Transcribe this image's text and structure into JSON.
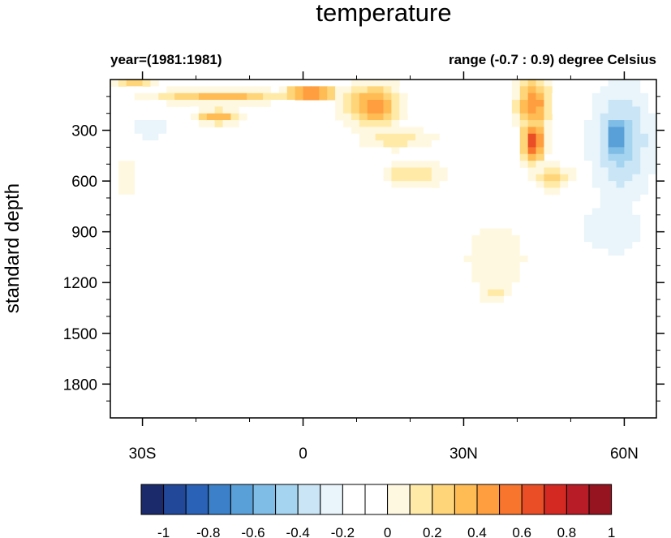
{
  "chart_data": {
    "type": "heatmap",
    "title": "temperature",
    "subtitle_left": "year=(1981:1981)",
    "subtitle_right": "range (-0.7 : 0.9) degree Celsius",
    "ylabel": "standard depth",
    "xlabel": "",
    "x_range": [
      -36,
      66
    ],
    "y_range": [
      0,
      2000
    ],
    "y_reversed": true,
    "x_ticks": [
      {
        "value": -30,
        "label": "30S"
      },
      {
        "value": 0,
        "label": "0"
      },
      {
        "value": 30,
        "label": "30N"
      },
      {
        "value": 60,
        "label": "60N"
      }
    ],
    "y_ticks": [
      {
        "value": 300,
        "label": "300"
      },
      {
        "value": 600,
        "label": "600"
      },
      {
        "value": 900,
        "label": "900"
      },
      {
        "value": 1200,
        "label": "1200"
      },
      {
        "value": 1500,
        "label": "1500"
      },
      {
        "value": 1800,
        "label": "1800"
      }
    ],
    "colorbar": {
      "colors": [
        "#1b2a6b",
        "#22489a",
        "#2a62b8",
        "#3b80c8",
        "#5aa0d8",
        "#7fbde6",
        "#a5d4f0",
        "#cae6f6",
        "#e9f5fb",
        "#ffffff",
        "#ffffff",
        "#fff8e1",
        "#ffeaa8",
        "#ffd57a",
        "#ffbc55",
        "#ff9e3e",
        "#f8752e",
        "#e94e26",
        "#d42923",
        "#b81c26",
        "#951420"
      ],
      "tick_labels": [
        {
          "index": 1,
          "label": "-1"
        },
        {
          "index": 3,
          "label": "-0.8"
        },
        {
          "index": 5,
          "label": "-0.6"
        },
        {
          "index": 7,
          "label": "-0.4"
        },
        {
          "index": 9,
          "label": "-0.2"
        },
        {
          "index": 11,
          "label": "0"
        },
        {
          "index": 13,
          "label": "0.2"
        },
        {
          "index": 15,
          "label": "0.4"
        },
        {
          "index": 17,
          "label": "0.6"
        },
        {
          "index": 19,
          "label": "0.8"
        },
        {
          "index": 21,
          "label": "1"
        }
      ]
    },
    "anomaly_features": [
      {
        "lat": [
          -35,
          -28
        ],
        "depth": [
          0,
          50
        ],
        "value": 0.4
      },
      {
        "lat": [
          -28,
          -3
        ],
        "depth": [
          60,
          140
        ],
        "value": 0.45
      },
      {
        "lat": [
          -20,
          -12
        ],
        "depth": [
          180,
          260
        ],
        "value": 0.5
      },
      {
        "lat": [
          -3,
          6
        ],
        "depth": [
          40,
          120
        ],
        "value": 0.75
      },
      {
        "lat": [
          8,
          18
        ],
        "depth": [
          30,
          280
        ],
        "value": 0.55
      },
      {
        "lat": [
          10,
          25
        ],
        "depth": [
          280,
          420
        ],
        "value": 0.25
      },
      {
        "lat": [
          15,
          26
        ],
        "depth": [
          480,
          640
        ],
        "value": 0.3
      },
      {
        "lat": [
          -35,
          -31
        ],
        "depth": [
          400,
          760
        ],
        "value": 0.15
      },
      {
        "lat": [
          -33,
          -24
        ],
        "depth": [
          200,
          380
        ],
        "value": -0.15
      },
      {
        "lat": [
          40,
          46
        ],
        "depth": [
          0,
          300
        ],
        "value": 0.6
      },
      {
        "lat": [
          41,
          45
        ],
        "depth": [
          250,
          480
        ],
        "value": 0.8
      },
      {
        "lat": [
          43,
          50
        ],
        "depth": [
          500,
          650
        ],
        "value": 0.35
      },
      {
        "lat": [
          54,
          65
        ],
        "depth": [
          30,
          700
        ],
        "value": -0.35
      },
      {
        "lat": [
          56,
          61
        ],
        "depth": [
          200,
          500
        ],
        "value": -0.6
      },
      {
        "lat": [
          52,
          64
        ],
        "depth": [
          700,
          1050
        ],
        "value": -0.2
      },
      {
        "lat": [
          30,
          42
        ],
        "depth": [
          850,
          1300
        ],
        "value": 0.2
      },
      {
        "lat": [
          33,
          38
        ],
        "depth": [
          1200,
          1320
        ],
        "value": 0.3
      },
      {
        "lat": [
          28,
          45
        ],
        "depth": [
          1300,
          2000
        ],
        "value": 0.08
      },
      {
        "lat": [
          57,
          64
        ],
        "depth": [
          1720,
          2000
        ],
        "value": 0.08
      }
    ]
  }
}
